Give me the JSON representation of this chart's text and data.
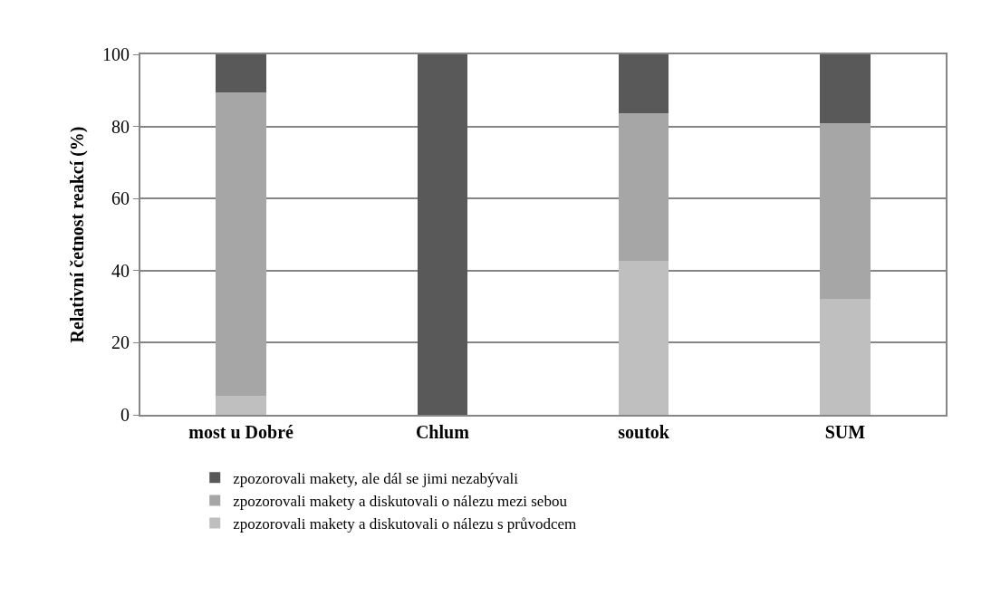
{
  "chart_data": {
    "type": "bar",
    "stacked": true,
    "ylabel": "Relativní četnost reakcí (%)",
    "categories": [
      "most u Dobré",
      "Chlum",
      "soutok",
      "SUM"
    ],
    "series": [
      {
        "name": "zpozorovali makety a diskutovali o nálezu s průvodcem",
        "color": "#bfbfbf",
        "values": [
          5.3,
          0,
          42.7,
          32.2
        ]
      },
      {
        "name": "zpozorovali makety a diskutovali o nálezu mezi sebou",
        "color": "#a6a6a6",
        "values": [
          84.1,
          0,
          40.9,
          48.7
        ]
      },
      {
        "name": "zpozorovali makety, ale dál se jimi nezabývali",
        "color": "#595959",
        "values": [
          10.6,
          100,
          16.4,
          19.1
        ]
      }
    ],
    "ylim": [
      0,
      100
    ],
    "yticks": [
      0,
      20,
      40,
      60,
      80,
      100
    ],
    "grid": "y",
    "legend": "bottom"
  }
}
